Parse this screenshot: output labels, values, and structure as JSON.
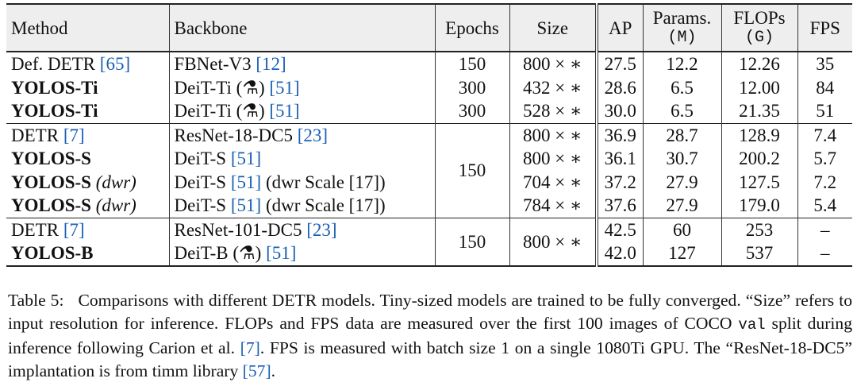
{
  "table": {
    "headers": {
      "method": "Method",
      "backbone": "Backbone",
      "epochs": "Epochs",
      "size": "Size",
      "ap": "AP",
      "params": "Params.",
      "params_unit": "(M)",
      "flops": "FLOPs",
      "flops_unit": "(G)",
      "fps": "FPS"
    },
    "rows": [
      {
        "method": "Def. DETR",
        "method_ref": "[65]",
        "method_suffix": "",
        "backbone": "FBNet-V3 ",
        "backbone_ref": "[12]",
        "backbone_suffix": "",
        "epochs": "150",
        "size": "800 × ∗",
        "ap": "27.5",
        "params": "12.2",
        "flops": "12.26",
        "fps": "35"
      },
      {
        "method": "YOLOS-Ti",
        "method_ref": "",
        "method_suffix": "",
        "backbone": "DeiT-Ti (⚗) ",
        "backbone_ref": "[51]",
        "backbone_suffix": "",
        "epochs": "300",
        "size": "432 × ∗",
        "ap": "28.6",
        "params": "6.5",
        "flops": "12.00",
        "fps": "84"
      },
      {
        "method": "YOLOS-Ti",
        "method_ref": "",
        "method_suffix": "",
        "backbone": "DeiT-Ti (⚗) ",
        "backbone_ref": "[51]",
        "backbone_suffix": "",
        "epochs": "300",
        "size": "528 × ∗",
        "ap": "30.0",
        "params": "6.5",
        "flops": "21.35",
        "fps": "51"
      },
      {
        "method": "DETR",
        "method_ref": "[7]",
        "method_suffix": "",
        "backbone": "ResNet-18-DC5 ",
        "backbone_ref": "[23]",
        "backbone_suffix": "",
        "epochs": "150",
        "size": "800 × ∗",
        "ap": "36.9",
        "params": "28.7",
        "flops": "128.9",
        "fps": "7.4"
      },
      {
        "method": "YOLOS-S",
        "method_ref": "",
        "method_suffix": "",
        "backbone": "DeiT-S ",
        "backbone_ref": "[51]",
        "backbone_suffix": "",
        "epochs": "",
        "size": "800 × ∗",
        "ap": "36.1",
        "params": "30.7",
        "flops": "200.2",
        "fps": "5.7"
      },
      {
        "method": "YOLOS-S",
        "method_ref": "",
        "method_suffix": " (dwr)",
        "backbone": "DeiT-S ",
        "backbone_ref": "[51]",
        "backbone_suffix": " (dwr Scale [17])",
        "epochs": "",
        "size": "704 × ∗",
        "ap": "37.2",
        "params": "27.9",
        "flops": "127.5",
        "fps": "7.2"
      },
      {
        "method": "YOLOS-S",
        "method_ref": "",
        "method_suffix": " (dwr)",
        "backbone": "DeiT-S ",
        "backbone_ref": "[51]",
        "backbone_suffix": " (dwr Scale [17])",
        "epochs": "",
        "size": "784 × ∗",
        "ap": "37.6",
        "params": "27.9",
        "flops": "179.0",
        "fps": "5.4"
      },
      {
        "method": "DETR",
        "method_ref": "[7]",
        "method_suffix": "",
        "backbone": "ResNet-101-DC5 ",
        "backbone_ref": "[23]",
        "backbone_suffix": "",
        "epochs": "150",
        "size": "800 × ∗",
        "ap": "42.5",
        "params": "60",
        "flops": "253",
        "fps": "–"
      },
      {
        "method": "YOLOS-B",
        "method_ref": "",
        "method_suffix": "",
        "backbone": "DeiT-B (⚗) ",
        "backbone_ref": "[51]",
        "backbone_suffix": "",
        "epochs": "",
        "size": "",
        "ap": "42.0",
        "params": "127",
        "flops": "537",
        "fps": "–"
      }
    ]
  },
  "caption": {
    "label": "Table 5:",
    "text_1": "Comparisons with different DETR models. Tiny-sized models are trained to be fully converged. “Size” refers to input resolution for inference. FLOPs and FPS data are measured over the first 100 images of COCO ",
    "code": "val",
    "text_2": " split during inference following Carion et al. ",
    "ref_1": "[7]",
    "text_3": ". FPS is measured with batch size 1 on a single 1080Ti GPU. The “ResNet-18-DC5” implantation is from timm library ",
    "ref_2": "[57]",
    "text_4": "."
  },
  "colors": {
    "reference_link": "#1a5fb4",
    "header_bg": "#eeeeee"
  }
}
